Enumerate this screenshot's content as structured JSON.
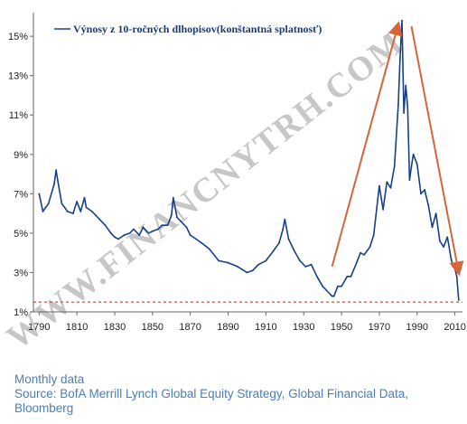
{
  "chart_data": {
    "type": "line",
    "legend": "Výnosy z 10-ročných dlhopisov(konštantná splatnosť)",
    "legend_position": "top-left",
    "xlim": [
      1787,
      2014
    ],
    "ylim": [
      1,
      16.2
    ],
    "x_ticks": [
      1790,
      1810,
      1830,
      1850,
      1870,
      1890,
      1910,
      1930,
      1950,
      1970,
      1990,
      2010
    ],
    "y_ticks": [
      1,
      3,
      5,
      7,
      9,
      11,
      13,
      15
    ],
    "y_tick_labels": [
      "1%",
      "3%",
      "5%",
      "7%",
      "9%",
      "11%",
      "13%",
      "15%"
    ],
    "grid": false,
    "colors": {
      "series": "#17408b",
      "reference": "#e0483a",
      "arrows": "#d9643a",
      "axis": "#666666"
    },
    "reference_line": {
      "y": 1.5,
      "style": "dashed"
    },
    "series": [
      {
        "x": [
          1790,
          1792,
          1795,
          1798,
          1799,
          1800,
          1802,
          1805,
          1808,
          1810,
          1812,
          1814,
          1815,
          1818,
          1820,
          1823,
          1825,
          1828,
          1830,
          1832,
          1835,
          1838,
          1840,
          1843,
          1845,
          1848,
          1850,
          1853,
          1855,
          1858,
          1860,
          1861,
          1863,
          1865,
          1868,
          1870,
          1873,
          1876,
          1880,
          1885,
          1890,
          1895,
          1900,
          1903,
          1906,
          1910,
          1914,
          1917,
          1919,
          1920,
          1922,
          1925,
          1928,
          1931,
          1934,
          1937,
          1940,
          1942,
          1945,
          1946,
          1948,
          1950,
          1953,
          1955,
          1958,
          1960,
          1962,
          1965,
          1967,
          1970,
          1972,
          1974,
          1976,
          1978,
          1980,
          1981,
          1982,
          1983,
          1984,
          1985,
          1986,
          1987,
          1988,
          1990,
          1992,
          1994,
          1996,
          1998,
          2000,
          2002,
          2004,
          2006,
          2008,
          2009,
          2010,
          2011,
          2012
        ],
        "y": [
          7.0,
          6.1,
          6.5,
          7.5,
          8.2,
          7.6,
          6.5,
          6.1,
          6.0,
          6.6,
          6.1,
          6.8,
          6.3,
          6.1,
          5.9,
          5.6,
          5.4,
          5.0,
          4.8,
          4.7,
          4.9,
          5.0,
          5.2,
          4.9,
          5.3,
          5.0,
          5.1,
          5.2,
          5.4,
          5.4,
          5.9,
          6.8,
          5.8,
          5.6,
          5.3,
          4.9,
          4.7,
          4.5,
          4.2,
          3.6,
          3.5,
          3.3,
          3.0,
          3.1,
          3.4,
          3.6,
          4.1,
          4.5,
          5.2,
          5.7,
          4.7,
          4.1,
          3.6,
          3.3,
          3.4,
          2.8,
          2.3,
          2.1,
          1.8,
          1.8,
          2.3,
          2.3,
          2.8,
          2.8,
          3.5,
          4.0,
          3.9,
          4.3,
          4.9,
          7.4,
          6.2,
          7.6,
          7.3,
          8.4,
          11.5,
          13.9,
          15.8,
          11.1,
          12.5,
          11.4,
          7.7,
          8.4,
          9.0,
          8.5,
          7.0,
          7.2,
          6.4,
          5.3,
          6.0,
          4.6,
          4.3,
          4.8,
          3.7,
          3.3,
          3.2,
          2.8,
          1.6
        ]
      }
    ]
  },
  "trend_arrows": [
    {
      "from": [
        1945,
        3.3
      ],
      "to": [
        1980,
        15.6
      ]
    },
    {
      "from": [
        1987,
        15.5
      ],
      "to": [
        2012,
        3.0
      ]
    }
  ],
  "watermark": "WWW.FINANCNYTRH.COM",
  "footer": {
    "line1": "Monthly data",
    "line2": "Source: BofA Merrill Lynch Global Equity Strategy, Global Financial Data,",
    "line3": "Bloomberg"
  }
}
